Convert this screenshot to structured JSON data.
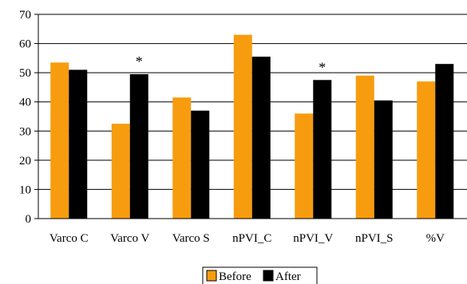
{
  "chart_data": {
    "type": "bar",
    "categories": [
      "Varco C",
      "Varco V",
      "Varco S",
      "nPVI_C",
      "nPVI_V",
      "nPVI_S",
      "%V"
    ],
    "series": [
      {
        "name": "Before",
        "values": [
          53.5,
          32.5,
          41.5,
          63.0,
          36.0,
          49.0,
          47.0
        ],
        "color": "#f79c0e"
      },
      {
        "name": "After",
        "values": [
          51.0,
          49.5,
          37.0,
          55.5,
          47.5,
          40.5,
          53.0
        ],
        "color": "#000000"
      }
    ],
    "yticks": [
      0,
      10,
      20,
      30,
      40,
      50,
      60,
      70
    ],
    "ylim": [
      0,
      70
    ],
    "grid": true,
    "legend_position": "bottom-center",
    "annotations": [
      {
        "category": "Varco V",
        "text": "*"
      },
      {
        "category": "nPVI_V",
        "text": "*"
      }
    ]
  }
}
